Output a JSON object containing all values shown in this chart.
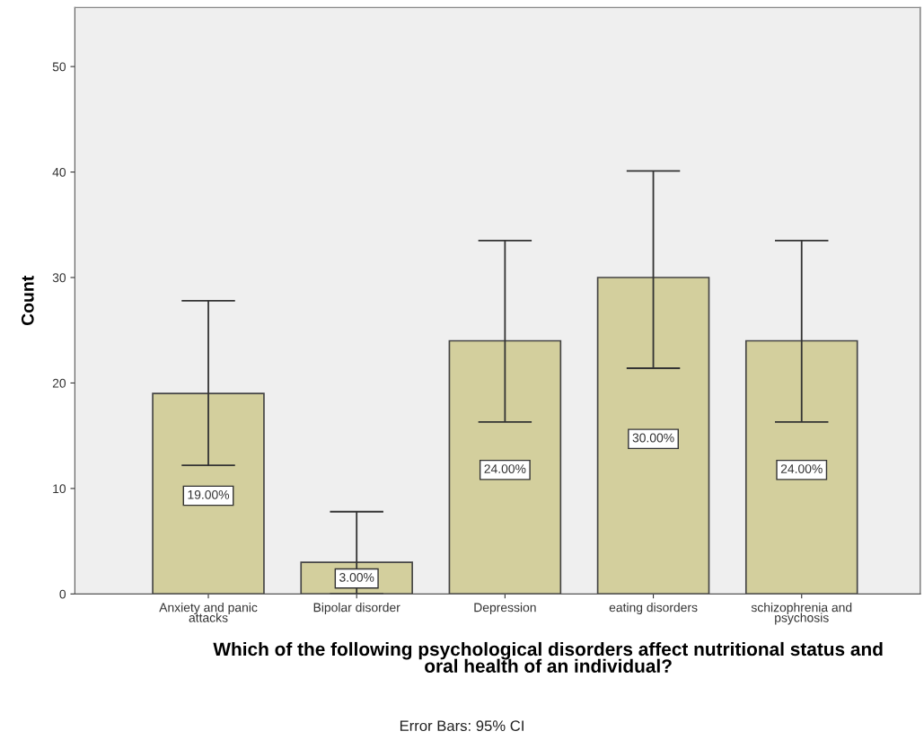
{
  "chart_data": {
    "type": "bar",
    "xlabel": "Which of the following psychological disorders affect nutritional status and\noral health of an individual?",
    "ylabel": "Count",
    "categories": [
      "Anxiety and panic\nattacks",
      "Bipolar disorder",
      "Depression",
      "eating disorders",
      "schizophrenia and\npsychosis"
    ],
    "values": [
      19,
      3,
      24,
      30,
      24
    ],
    "errors": [
      [
        12.2,
        27.8
      ],
      [
        0,
        7.8
      ],
      [
        16.3,
        33.5
      ],
      [
        21.4,
        40.1
      ],
      [
        16.3,
        33.5
      ]
    ],
    "value_labels": [
      "19.00%",
      "3.00%",
      "24.00%",
      "30.00%",
      "24.00%"
    ],
    "color": "#d3cf9d",
    "ylim": [
      0,
      55.6
    ],
    "yticks": [
      0,
      10,
      20,
      30,
      40,
      50
    ],
    "grid": false,
    "annotations": [
      "Error Bars: 95% CI"
    ]
  }
}
